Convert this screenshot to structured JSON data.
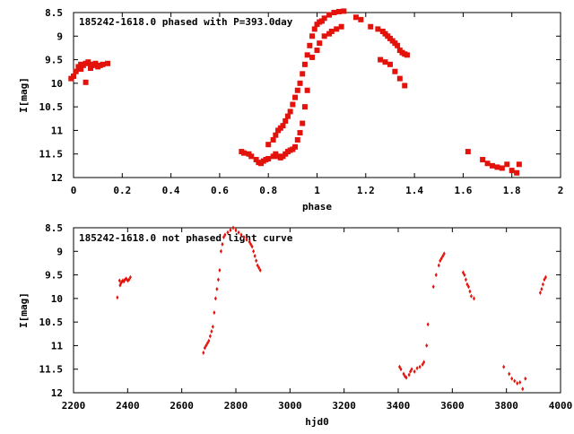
{
  "colors": {
    "marker": "#e3120b",
    "axis": "#000000",
    "background": "#ffffff"
  },
  "chart_data": [
    {
      "type": "scatter",
      "title": "185242-1618.0 phased with P=393.0day",
      "xlabel": "phase",
      "ylabel": "I[mag]",
      "xlim": [
        0,
        2
      ],
      "ylim": [
        8.5,
        12
      ],
      "y_inverted": true,
      "grid": false,
      "xticks": [
        0,
        0.2,
        0.4,
        0.6,
        0.8,
        1,
        1.2,
        1.4,
        1.6,
        1.8,
        2
      ],
      "xtick_labels": [
        "0",
        "0.2",
        "0.4",
        "0.6",
        "0.8",
        "1",
        "1.2",
        "1.4",
        "1.6",
        "1.8",
        "2"
      ],
      "yticks": [
        8.5,
        9,
        9.5,
        10,
        10.5,
        11,
        11.5,
        12
      ],
      "ytick_labels": [
        "8.5",
        "9",
        "9.5",
        "10",
        "10.5",
        "11",
        "11.5",
        "12"
      ],
      "series": [
        {
          "name": "phased",
          "x": [
            -0.01,
            0.0,
            0.01,
            0.02,
            0.03,
            0.04,
            0.05,
            0.06,
            0.07,
            0.08,
            0.09,
            0.1,
            0.11,
            0.12,
            0.14,
            0.03,
            0.05,
            0.07,
            0.69,
            0.7,
            0.72,
            0.73,
            0.75,
            0.76,
            0.77,
            0.78,
            0.79,
            0.8,
            0.82,
            0.83,
            0.84,
            0.85,
            0.86,
            0.87,
            0.88,
            0.89,
            0.9,
            0.91,
            0.92,
            0.93,
            0.94,
            0.95,
            0.96,
            0.8,
            0.82,
            0.83,
            0.84,
            0.85,
            0.86,
            0.87,
            0.88,
            0.89,
            0.9,
            0.91,
            0.92,
            0.93,
            0.94,
            0.95,
            0.96,
            0.97,
            0.98,
            0.99,
            1.0,
            1.01,
            1.02,
            1.03,
            1.05,
            1.07,
            1.09,
            1.11,
            0.98,
            1.0,
            1.01,
            1.03,
            1.05,
            1.06,
            1.08,
            1.1,
            1.16,
            1.18,
            1.22,
            1.25,
            1.27,
            1.28,
            1.29,
            1.3,
            1.31,
            1.32,
            1.33,
            1.34,
            1.35,
            1.36,
            1.37,
            1.26,
            1.28,
            1.3,
            1.32,
            1.34,
            1.36,
            1.62,
            1.68,
            1.7,
            1.72,
            1.74,
            1.76,
            1.78,
            1.8,
            1.82,
            1.83
          ],
          "y": [
            9.9,
            9.85,
            9.75,
            9.65,
            9.6,
            9.62,
            9.58,
            9.55,
            9.6,
            9.62,
            9.58,
            9.65,
            9.62,
            9.6,
            9.58,
            9.7,
            9.98,
            9.68,
            11.45,
            11.48,
            11.5,
            11.55,
            11.62,
            11.68,
            11.7,
            11.65,
            11.62,
            11.6,
            11.55,
            11.5,
            11.55,
            11.58,
            11.55,
            11.5,
            11.45,
            11.42,
            11.4,
            11.35,
            11.2,
            11.05,
            10.85,
            10.5,
            10.15,
            11.3,
            11.2,
            11.1,
            11.0,
            10.95,
            10.9,
            10.8,
            10.7,
            10.6,
            10.45,
            10.3,
            10.15,
            10.0,
            9.8,
            9.6,
            9.4,
            9.2,
            9.0,
            8.85,
            8.75,
            8.7,
            8.68,
            8.62,
            8.55,
            8.5,
            8.48,
            8.47,
            9.45,
            9.3,
            9.15,
            9.0,
            8.95,
            8.9,
            8.85,
            8.8,
            8.6,
            8.65,
            8.8,
            8.85,
            8.9,
            8.95,
            9.0,
            9.05,
            9.1,
            9.15,
            9.2,
            9.3,
            9.35,
            9.38,
            9.4,
            9.5,
            9.55,
            9.6,
            9.75,
            9.9,
            10.05,
            11.45,
            11.62,
            11.7,
            11.75,
            11.78,
            11.8,
            11.72,
            11.85,
            11.9,
            11.72
          ]
        }
      ]
    },
    {
      "type": "scatter",
      "title": "185242-1618.0 not phased light curve",
      "xlabel": "hjd0",
      "ylabel": "I[mag]",
      "xlim": [
        2200,
        4000
      ],
      "ylim": [
        8.5,
        12
      ],
      "y_inverted": true,
      "grid": false,
      "xticks": [
        2200,
        2400,
        2600,
        2800,
        3000,
        3200,
        3400,
        3600,
        3800,
        4000
      ],
      "xtick_labels": [
        "2200",
        "2400",
        "2600",
        "2800",
        "3000",
        "3200",
        "3400",
        "3600",
        "3800",
        "4000"
      ],
      "yticks": [
        8.5,
        9,
        9.5,
        10,
        10.5,
        11,
        11.5,
        12
      ],
      "ytick_labels": [
        "8.5",
        "9",
        "9.5",
        "10",
        "10.5",
        "11",
        "11.5",
        "12"
      ],
      "series": [
        {
          "name": "light curve",
          "x": [
            2362,
            2370,
            2372,
            2375,
            2378,
            2382,
            2386,
            2390,
            2395,
            2400,
            2405,
            2410,
            2680,
            2685,
            2690,
            2695,
            2700,
            2705,
            2710,
            2715,
            2720,
            2725,
            2730,
            2735,
            2740,
            2745,
            2750,
            2755,
            2760,
            2770,
            2780,
            2790,
            2800,
            2810,
            2820,
            2830,
            2840,
            2850,
            2855,
            2860,
            2865,
            2870,
            2875,
            2880,
            2885,
            2890,
            3405,
            3410,
            3420,
            3425,
            3430,
            3440,
            3445,
            3450,
            3460,
            3470,
            3480,
            3490,
            3495,
            3505,
            3510,
            3530,
            3540,
            3550,
            3555,
            3560,
            3565,
            3570,
            3640,
            3645,
            3650,
            3655,
            3660,
            3665,
            3670,
            3680,
            3790,
            3810,
            3820,
            3830,
            3840,
            3850,
            3860,
            3870,
            3925,
            3930,
            3935,
            3940,
            3945
          ],
          "y": [
            9.98,
            9.62,
            9.72,
            9.68,
            9.65,
            9.62,
            9.64,
            9.6,
            9.58,
            9.62,
            9.6,
            9.55,
            11.15,
            11.05,
            11.0,
            10.95,
            10.9,
            10.8,
            10.7,
            10.6,
            10.3,
            10.0,
            9.8,
            9.6,
            9.4,
            9.0,
            8.85,
            8.7,
            8.65,
            8.6,
            8.55,
            8.5,
            8.55,
            8.6,
            8.65,
            8.7,
            8.75,
            8.8,
            8.85,
            8.9,
            9.0,
            9.1,
            9.2,
            9.3,
            9.35,
            9.4,
            11.45,
            11.5,
            11.6,
            11.65,
            11.68,
            11.62,
            11.55,
            11.5,
            11.55,
            11.48,
            11.45,
            11.4,
            11.35,
            11.0,
            10.55,
            9.75,
            9.5,
            9.3,
            9.2,
            9.15,
            9.1,
            9.05,
            9.45,
            9.5,
            9.6,
            9.7,
            9.75,
            9.85,
            9.95,
            10.0,
            11.45,
            11.6,
            11.7,
            11.75,
            11.8,
            11.78,
            11.92,
            11.7,
            9.88,
            9.8,
            9.7,
            9.6,
            9.55
          ]
        }
      ]
    }
  ]
}
